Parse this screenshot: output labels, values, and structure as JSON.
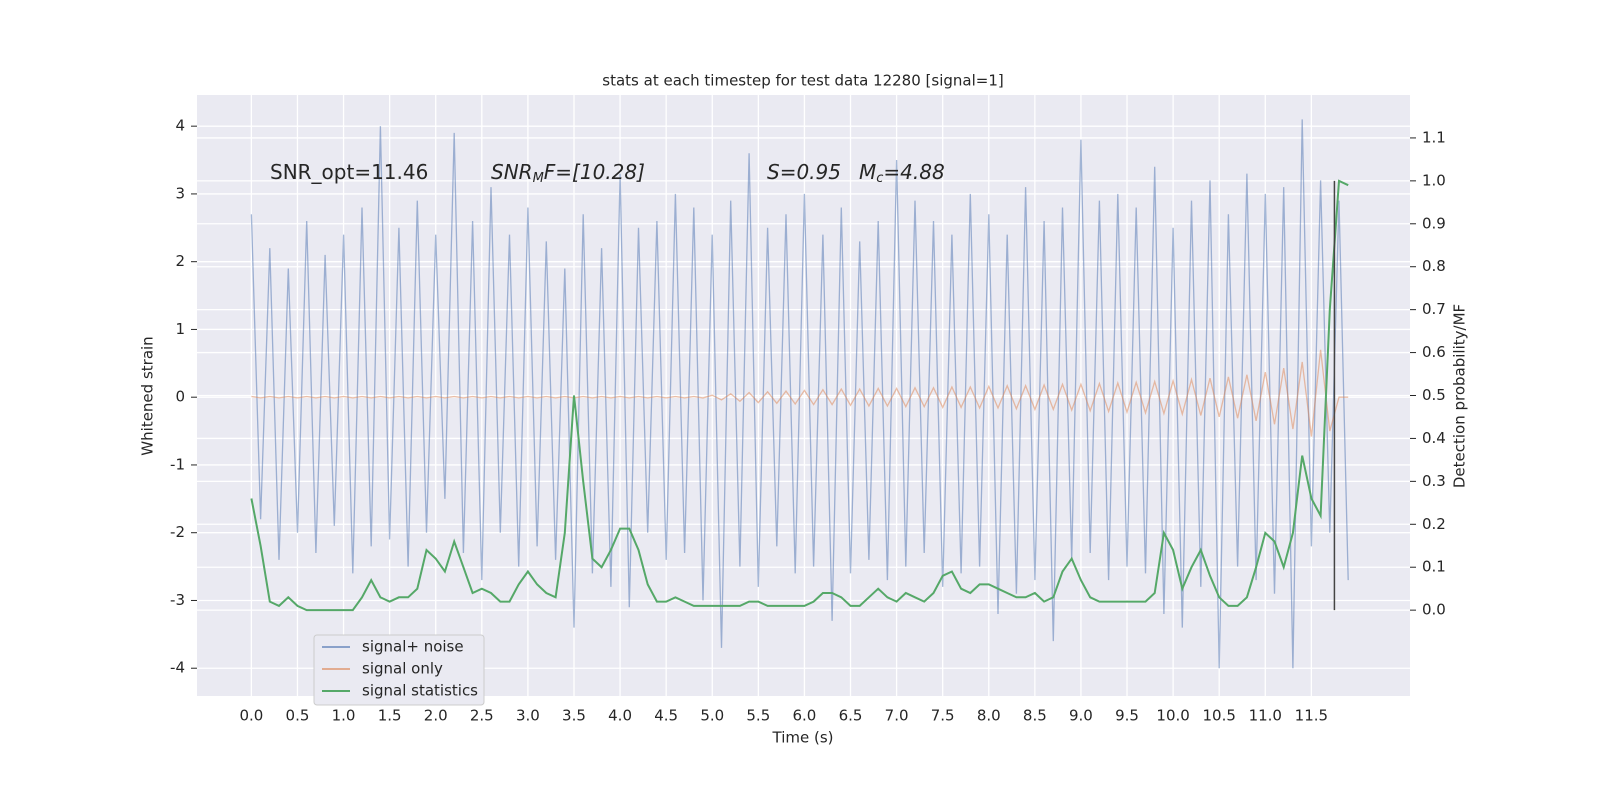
{
  "chart_data": {
    "type": "line",
    "title": "stats at each timestep for test data 12280 [signal=1]",
    "xlabel": "Time (s)",
    "ylabel": "Whitened strain",
    "y2label": "Detection probability/MF",
    "annotations": [
      {
        "text": "SNR_opt=11.46"
      },
      {
        "italic": "SNR",
        "sub": "M",
        "rest": "F=[10.28]"
      },
      {
        "italic": "S",
        "rest": "=0.95"
      },
      {
        "italic": "M",
        "sub": "c",
        "rest": "=4.88"
      }
    ],
    "x": [
      0,
      0.1,
      0.2,
      0.3,
      0.4,
      0.5,
      0.6,
      0.7,
      0.8,
      0.9,
      1,
      1.1,
      1.2,
      1.3,
      1.4,
      1.5,
      1.6,
      1.7,
      1.8,
      1.9,
      2,
      2.1,
      2.2,
      2.3,
      2.4,
      2.5,
      2.6,
      2.7,
      2.8,
      2.9,
      3,
      3.1,
      3.2,
      3.3,
      3.4,
      3.5,
      3.6,
      3.7,
      3.8,
      3.9,
      4,
      4.1,
      4.2,
      4.3,
      4.4,
      4.5,
      4.6,
      4.7,
      4.8,
      4.9,
      5,
      5.1,
      5.2,
      5.3,
      5.4,
      5.5,
      5.6,
      5.7,
      5.8,
      5.9,
      6,
      6.1,
      6.2,
      6.3,
      6.4,
      6.5,
      6.6,
      6.7,
      6.8,
      6.9,
      7,
      7.1,
      7.2,
      7.3,
      7.4,
      7.5,
      7.6,
      7.7,
      7.8,
      7.9,
      8,
      8.1,
      8.2,
      8.3,
      8.4,
      8.5,
      8.6,
      8.7,
      8.8,
      8.9,
      9,
      9.1,
      9.2,
      9.3,
      9.4,
      9.5,
      9.6,
      9.7,
      9.8,
      9.9,
      10,
      10.1,
      10.2,
      10.3,
      10.4,
      10.5,
      10.6,
      10.7,
      10.8,
      10.9,
      11,
      11.1,
      11.2,
      11.3,
      11.4,
      11.5,
      11.6,
      11.7,
      11.8,
      11.9
    ],
    "series": [
      {
        "name": "signal+ noise",
        "color": "#4c72b0",
        "values": [
          2.7,
          -1.8,
          2.2,
          -2.4,
          1.9,
          -2.0,
          2.6,
          -2.3,
          2.1,
          -1.9,
          2.4,
          -2.6,
          2.8,
          -2.2,
          4.0,
          -2.1,
          2.5,
          -2.5,
          2.9,
          -2.0,
          2.4,
          -1.5,
          3.9,
          -2.3,
          2.6,
          -2.7,
          3.1,
          -2.0,
          2.4,
          -2.5,
          2.8,
          -2.2,
          2.3,
          -2.4,
          1.9,
          -3.4,
          2.7,
          -2.6,
          2.2,
          -2.8,
          3.3,
          -3.1,
          2.5,
          -2.0,
          2.6,
          -2.4,
          3.0,
          -2.3,
          2.8,
          -3.0,
          2.4,
          -3.7,
          2.9,
          -2.5,
          3.6,
          -2.8,
          2.5,
          -2.2,
          2.7,
          -2.6,
          3.0,
          -2.5,
          2.4,
          -3.3,
          2.8,
          -2.6,
          2.3,
          -2.4,
          2.6,
          -2.7,
          3.5,
          -2.5,
          2.9,
          -2.3,
          2.6,
          -2.8,
          2.4,
          -2.6,
          3.0,
          -2.5,
          2.7,
          -3.2,
          2.4,
          -2.9,
          3.1,
          -2.7,
          2.6,
          -3.6,
          2.8,
          -2.4,
          3.8,
          -2.3,
          2.9,
          -2.7,
          3.0,
          -2.5,
          2.8,
          -2.6,
          3.4,
          -3.2,
          2.5,
          -3.4,
          2.9,
          -2.8,
          3.2,
          -4.0,
          2.7,
          -2.5,
          3.3,
          -2.7,
          3.0,
          -2.9,
          3.1,
          -4.0,
          4.1,
          -2.2,
          3.2,
          -2.0,
          2.9,
          -2.7
        ]
      },
      {
        "name": "signal only",
        "color": "#dd8452",
        "values": [
          0.01,
          -0.01,
          0.01,
          -0.01,
          0.01,
          -0.01,
          0.01,
          -0.01,
          0.01,
          -0.01,
          0.01,
          -0.01,
          0.01,
          -0.01,
          0.01,
          -0.01,
          0.01,
          -0.01,
          0.01,
          -0.01,
          0.01,
          -0.01,
          0.01,
          -0.01,
          0.01,
          -0.01,
          0.01,
          -0.01,
          0.01,
          -0.01,
          0.01,
          -0.01,
          0.01,
          -0.01,
          0.01,
          -0.01,
          0.01,
          -0.01,
          0.01,
          -0.01,
          0.01,
          -0.01,
          0.01,
          -0.01,
          0.01,
          -0.01,
          0.01,
          -0.01,
          0.01,
          -0.01,
          0.03,
          -0.04,
          0.05,
          -0.06,
          0.07,
          -0.08,
          0.08,
          -0.09,
          0.09,
          -0.1,
          0.1,
          -0.11,
          0.11,
          -0.11,
          0.12,
          -0.12,
          0.12,
          -0.13,
          0.13,
          -0.13,
          0.13,
          -0.14,
          0.14,
          -0.14,
          0.14,
          -0.15,
          0.15,
          -0.15,
          0.15,
          -0.16,
          0.16,
          -0.16,
          0.17,
          -0.17,
          0.17,
          -0.18,
          0.18,
          -0.18,
          0.19,
          -0.19,
          0.19,
          -0.2,
          0.2,
          -0.21,
          0.21,
          -0.22,
          0.22,
          -0.23,
          0.23,
          -0.24,
          0.24,
          -0.25,
          0.26,
          -0.27,
          0.28,
          -0.29,
          0.3,
          -0.31,
          0.33,
          -0.35,
          0.37,
          -0.4,
          0.43,
          -0.47,
          0.52,
          -0.58,
          0.7,
          -0.5,
          0.0,
          0.0
        ]
      },
      {
        "name": "signal statistics",
        "color": "#55a868",
        "axis": "y2",
        "values": [
          0.26,
          0.15,
          0.02,
          0.01,
          0.03,
          0.01,
          0.0,
          0.0,
          0.0,
          0.0,
          0.0,
          0.0,
          0.03,
          0.07,
          0.03,
          0.02,
          0.03,
          0.03,
          0.05,
          0.14,
          0.12,
          0.09,
          0.16,
          0.1,
          0.04,
          0.05,
          0.04,
          0.02,
          0.02,
          0.06,
          0.09,
          0.06,
          0.04,
          0.03,
          0.18,
          0.5,
          0.3,
          0.12,
          0.1,
          0.14,
          0.19,
          0.19,
          0.14,
          0.06,
          0.02,
          0.02,
          0.03,
          0.02,
          0.01,
          0.01,
          0.01,
          0.01,
          0.01,
          0.01,
          0.02,
          0.02,
          0.01,
          0.01,
          0.01,
          0.01,
          0.01,
          0.02,
          0.04,
          0.04,
          0.03,
          0.01,
          0.01,
          0.03,
          0.05,
          0.03,
          0.02,
          0.04,
          0.03,
          0.02,
          0.04,
          0.08,
          0.09,
          0.05,
          0.04,
          0.06,
          0.06,
          0.05,
          0.04,
          0.03,
          0.03,
          0.04,
          0.02,
          0.03,
          0.09,
          0.12,
          0.07,
          0.03,
          0.02,
          0.02,
          0.02,
          0.02,
          0.02,
          0.02,
          0.04,
          0.18,
          0.14,
          0.05,
          0.1,
          0.14,
          0.08,
          0.03,
          0.01,
          0.01,
          0.03,
          0.1,
          0.18,
          0.16,
          0.1,
          0.18,
          0.36,
          0.26,
          0.22,
          0.7,
          1.0,
          0.99
        ]
      }
    ],
    "vline": {
      "x": 11.75,
      "y2": [
        0,
        1
      ],
      "color": "#444444"
    },
    "xlim": [
      -0.59,
      12.57
    ],
    "ylim": [
      -4.41,
      4.46
    ],
    "y2lim": [
      -0.2,
      1.2
    ],
    "xticks": [
      {
        "value": 0,
        "label": "0.0"
      },
      {
        "value": 0.5,
        "label": "0.5"
      },
      {
        "value": 1,
        "label": "1.0"
      },
      {
        "value": 1.5,
        "label": "1.5"
      },
      {
        "value": 2,
        "label": "2.0"
      },
      {
        "value": 2.5,
        "label": "2.5"
      },
      {
        "value": 3,
        "label": "3.0"
      },
      {
        "value": 3.5,
        "label": "3.5"
      },
      {
        "value": 4,
        "label": "4.0"
      },
      {
        "value": 4.5,
        "label": "4.5"
      },
      {
        "value": 5,
        "label": "5.0"
      },
      {
        "value": 5.5,
        "label": "5.5"
      },
      {
        "value": 6,
        "label": "6.0"
      },
      {
        "value": 6.5,
        "label": "6.5"
      },
      {
        "value": 7,
        "label": "7.0"
      },
      {
        "value": 7.5,
        "label": "7.5"
      },
      {
        "value": 8,
        "label": "8.0"
      },
      {
        "value": 8.5,
        "label": "8.5"
      },
      {
        "value": 9,
        "label": "9.0"
      },
      {
        "value": 9.5,
        "label": "9.5"
      },
      {
        "value": 10,
        "label": "10.0"
      },
      {
        "value": 10.5,
        "label": "10.5"
      },
      {
        "value": 11,
        "label": "11.0"
      },
      {
        "value": 11.5,
        "label": "11.5"
      }
    ],
    "yticks": [
      -4,
      -3,
      -2,
      -1,
      0,
      1,
      2,
      3,
      4
    ],
    "y2ticks": [
      {
        "value": 0,
        "label": "0.0"
      },
      {
        "value": 0.1,
        "label": "0.1"
      },
      {
        "value": 0.2,
        "label": "0.2"
      },
      {
        "value": 0.3,
        "label": "0.3"
      },
      {
        "value": 0.4,
        "label": "0.4"
      },
      {
        "value": 0.5,
        "label": "0.5"
      },
      {
        "value": 0.6,
        "label": "0.6"
      },
      {
        "value": 0.7,
        "label": "0.7"
      },
      {
        "value": 0.8,
        "label": "0.8"
      },
      {
        "value": 0.9,
        "label": "0.9"
      },
      {
        "value": 1,
        "label": "1.0"
      },
      {
        "value": 1.1,
        "label": "1.1"
      }
    ],
    "grid": true,
    "legend": "lower left",
    "background": "#eaeaf2"
  }
}
